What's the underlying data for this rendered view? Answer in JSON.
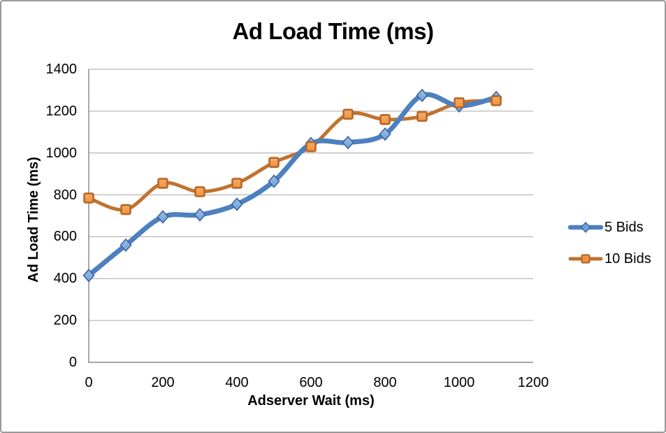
{
  "window": {
    "background": "#ffffff",
    "border_color": "#999999"
  },
  "chart_data": {
    "type": "line",
    "title": "Ad Load Time (ms)",
    "xlabel": "Adserver Wait (ms)",
    "ylabel": "Ad Load Time (ms)",
    "x": [
      0,
      100,
      200,
      300,
      400,
      500,
      600,
      700,
      800,
      900,
      1000,
      1100
    ],
    "series": [
      {
        "name": "5 Bids",
        "marker": "diamond",
        "line_color": "#4D80BE",
        "line_width": 7,
        "marker_fill": "#6FA0DB",
        "marker_fill_light": "#9CBEE8",
        "marker_stroke": "#3A659A",
        "values": [
          415,
          560,
          695,
          705,
          755,
          865,
          1045,
          1050,
          1090,
          1275,
          1225,
          1265
        ]
      },
      {
        "name": "10 Bids",
        "marker": "square",
        "line_color": "#C1722F",
        "line_width": 5,
        "marker_fill": "#F0953F",
        "marker_fill_light": "#F6AC63",
        "marker_stroke": "#B4682C",
        "values": [
          785,
          730,
          855,
          815,
          855,
          955,
          1030,
          1185,
          1160,
          1175,
          1240,
          1250
        ]
      }
    ],
    "xlim": [
      0,
      1200
    ],
    "ylim": [
      0,
      1400
    ],
    "x_ticks": [
      0,
      200,
      400,
      600,
      800,
      1000,
      1200
    ],
    "y_ticks": [
      0,
      200,
      400,
      600,
      800,
      1000,
      1200,
      1400
    ],
    "grid": "horizontal",
    "smoothed_lines": true,
    "legend_position": "right",
    "gridline_color": "#A6A6A6",
    "axis_color": "#8C8C8C"
  }
}
